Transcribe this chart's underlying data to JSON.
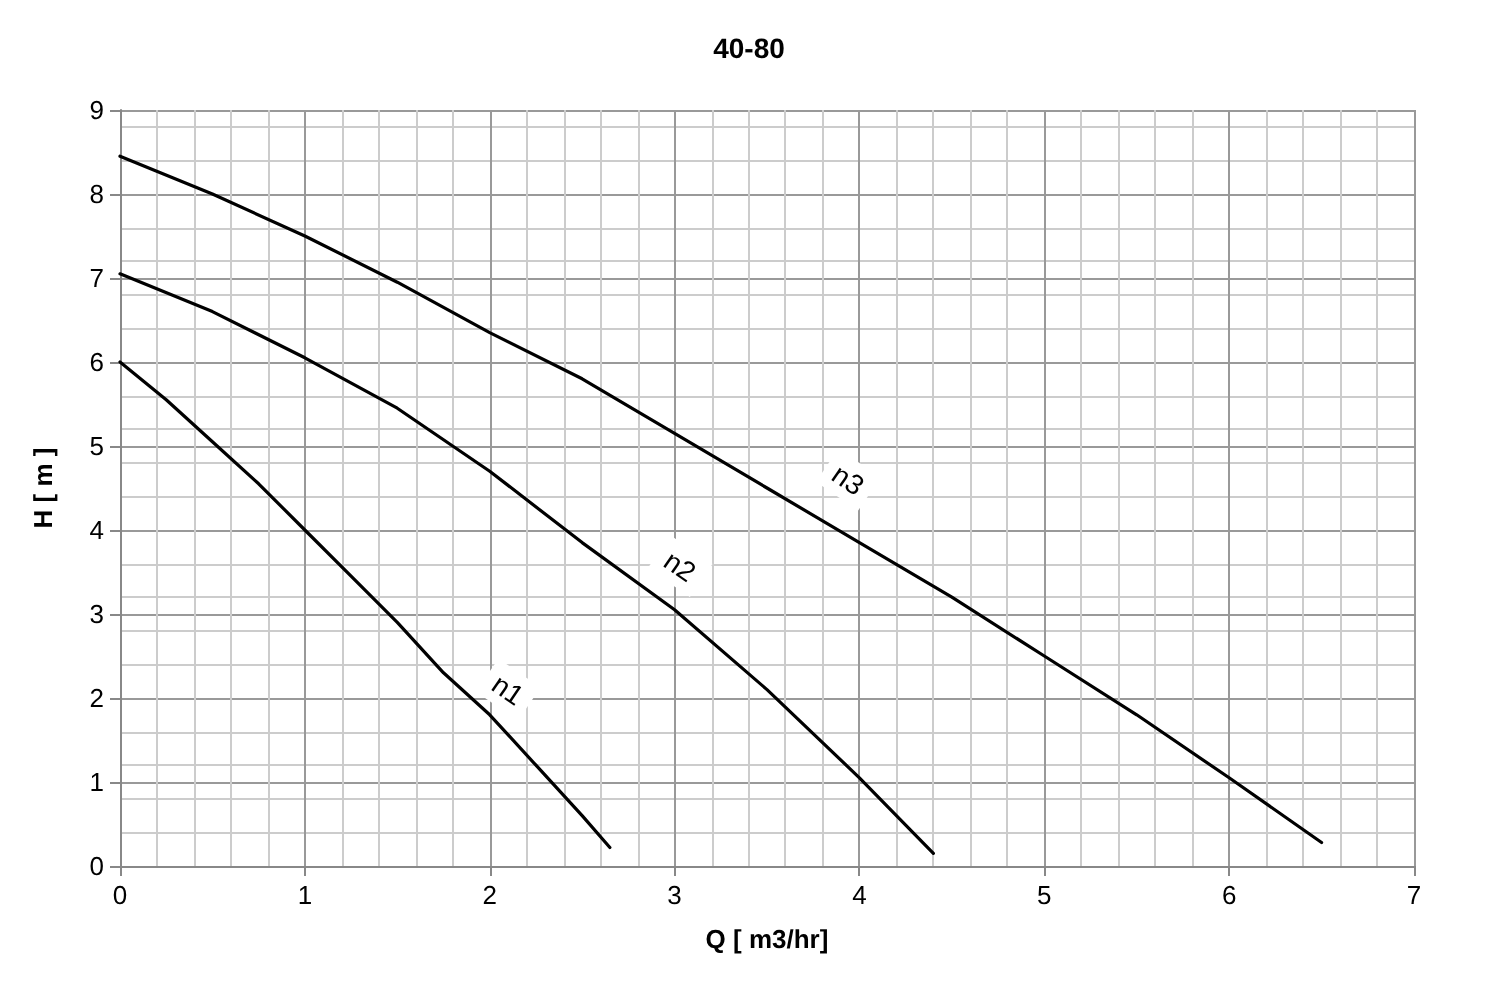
{
  "chart_data": {
    "type": "line",
    "title": "40-80",
    "xlabel": "Q [ m3/hr]",
    "ylabel": "H [ m ]",
    "xlim": [
      0,
      7
    ],
    "xticks": [
      0,
      1,
      2,
      3,
      4,
      5,
      6,
      7
    ],
    "ylim": [
      0,
      9
    ],
    "yticks": [
      0,
      1,
      2,
      3,
      4,
      5,
      6,
      7,
      8,
      9
    ],
    "grid": true,
    "marker": "none",
    "line_style": "solid",
    "series": [
      {
        "color": "#000000",
        "x": [
          0,
          0.25,
          0.5,
          0.75,
          1,
          1.25,
          1.5,
          1.75,
          2,
          2.25,
          2.5,
          2.65
        ],
        "values": [
          6,
          5.55,
          5.05,
          4.55,
          4.0,
          3.45,
          2.9,
          2.3,
          1.8,
          1.2,
          0.6,
          0.22
        ]
      },
      {
        "color": "#000000",
        "x": [
          0,
          0.5,
          1,
          1.5,
          2,
          2.5,
          3,
          3.5,
          4,
          4.4
        ],
        "values": [
          7.05,
          6.6,
          6.05,
          5.45,
          4.7,
          3.85,
          3.05,
          2.1,
          1.05,
          0.15
        ]
      },
      {
        "color": "#000000",
        "x": [
          0,
          0.5,
          1,
          1.5,
          2,
          2.5,
          3,
          3.5,
          4,
          4.5,
          5,
          5.5,
          6,
          6.5
        ],
        "values": [
          8.45,
          8.0,
          7.5,
          6.95,
          6.35,
          5.8,
          5.15,
          4.5,
          3.85,
          3.2,
          2.5,
          1.8,
          1.05,
          0.28
        ]
      }
    ],
    "annotations": [
      {
        "text": "n1",
        "x": 2.1,
        "y": 2.1
      },
      {
        "text": "n2",
        "x": 3.03,
        "y": 3.57
      },
      {
        "text": "n3",
        "x": 3.94,
        "y": 4.6
      }
    ]
  }
}
